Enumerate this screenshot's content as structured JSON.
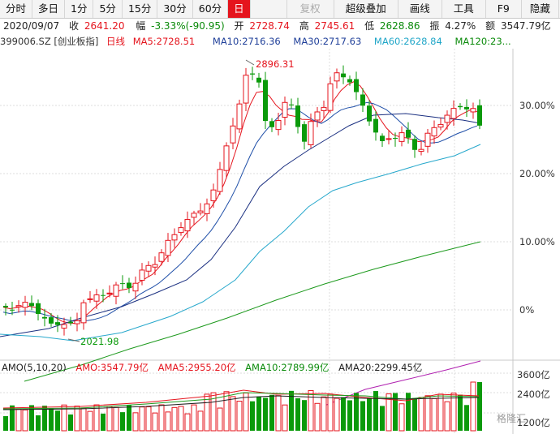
{
  "toolbar": {
    "tabs": [
      "分时",
      "多日",
      "1分",
      "5分",
      "15分",
      "30分",
      "60分",
      "日"
    ],
    "active": "日",
    "right_items": [
      "复权",
      "超级叠加",
      "画线",
      "工具",
      "F9",
      "隐藏"
    ]
  },
  "info": {
    "date": "2020/09/07",
    "close_label": "收",
    "close": "2641.20",
    "amp_label": "幅",
    "change": "-3.33%(-90.95)",
    "open_label": "开",
    "open": "2728.74",
    "high_label": "高",
    "high": "2745.61",
    "low_label": "低",
    "low": "2628.86",
    "swing_label": "振",
    "swing": "4.27%",
    "amount_label": "额",
    "amount": "3547.79亿"
  },
  "ma": {
    "code": "399006.SZ [创业板指]",
    "period": "日线",
    "ma5": "MA5:2728.51",
    "ma10": "MA10:2716.36",
    "ma30": "MA30:2717.63",
    "ma60": "MA60:2628.84",
    "ma120": "MA120:23..."
  },
  "volume_legend": {
    "title": "AMO(5,10,20)",
    "amo": "AMO:3547.79亿",
    "ama5": "AMA5:2955.20亿",
    "ama10": "AMA10:2789.99亿",
    "ama20": "AMA20:2299.45亿"
  },
  "axis": {
    "pct_ticks": [
      "30.00%",
      "20.00%",
      "10.00%",
      "0%"
    ],
    "vol_ticks": [
      "3600亿",
      "2400亿",
      "1200亿"
    ]
  },
  "annotations": {
    "high_label": "2896.31",
    "low_label": "2021.98"
  },
  "watermark": "格隆汇",
  "colors": {
    "up": "#e5141d",
    "down": "#0a9a0a",
    "ma5": "#e5141d",
    "ma10": "#1f4fa8",
    "ma30": "#1a2f80",
    "ma60": "#27a8cc",
    "ma120": "#1e9a1e",
    "ma250": "#b020b0"
  }
}
